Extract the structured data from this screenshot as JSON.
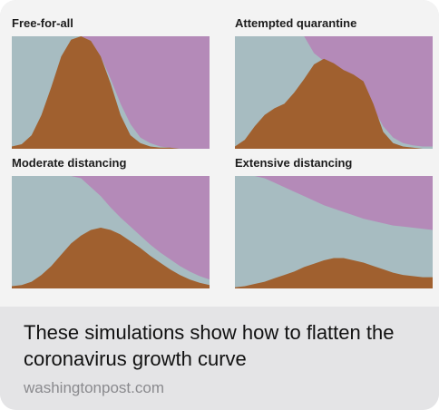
{
  "link_preview": {
    "headline": "These simulations show how to flatten the coronavirus growth curve",
    "domain": "washingtonpost.com",
    "colors": {
      "healthy": "#a7bcc1",
      "sick": "#a0602f",
      "recovered": "#b48ab8",
      "background": "#f3f3f3",
      "caption_bg": "#e4e4e6"
    }
  },
  "chart_data": [
    {
      "type": "area",
      "title": "Free-for-all",
      "stacked": true,
      "series_order": [
        "sick",
        "healthy",
        "recovered"
      ],
      "x": [
        0,
        0.05,
        0.1,
        0.15,
        0.2,
        0.25,
        0.3,
        0.35,
        0.4,
        0.45,
        0.5,
        0.55,
        0.6,
        0.65,
        0.7,
        0.75,
        0.8,
        0.85,
        0.9,
        0.95,
        1
      ],
      "sick_top": [
        0.02,
        0.04,
        0.12,
        0.3,
        0.55,
        0.82,
        0.97,
        1.0,
        0.96,
        0.82,
        0.58,
        0.3,
        0.12,
        0.05,
        0.02,
        0.01,
        0.01,
        0.0,
        0.0,
        0.0,
        0.0
      ],
      "healthy_top": [
        1.0,
        1.0,
        1.0,
        1.0,
        1.0,
        1.0,
        1.0,
        1.0,
        0.96,
        0.82,
        0.62,
        0.4,
        0.22,
        0.1,
        0.05,
        0.02,
        0.01,
        0.0,
        0.0,
        0.0,
        0.0
      ]
    },
    {
      "type": "area",
      "title": "Attempted quarantine",
      "stacked": true,
      "series_order": [
        "sick",
        "healthy",
        "recovered"
      ],
      "x": [
        0,
        0.05,
        0.1,
        0.15,
        0.2,
        0.25,
        0.3,
        0.35,
        0.4,
        0.45,
        0.5,
        0.55,
        0.6,
        0.65,
        0.7,
        0.75,
        0.8,
        0.85,
        0.9,
        0.95,
        1
      ],
      "sick_top": [
        0.02,
        0.08,
        0.2,
        0.3,
        0.36,
        0.4,
        0.5,
        0.62,
        0.75,
        0.8,
        0.76,
        0.7,
        0.66,
        0.6,
        0.4,
        0.15,
        0.05,
        0.02,
        0.01,
        0.0,
        0.0
      ],
      "healthy_top": [
        1.0,
        1.0,
        1.0,
        1.0,
        1.0,
        1.0,
        1.0,
        1.0,
        0.85,
        0.78,
        0.72,
        0.66,
        0.6,
        0.5,
        0.36,
        0.2,
        0.1,
        0.05,
        0.03,
        0.02,
        0.02
      ]
    },
    {
      "type": "area",
      "title": "Moderate distancing",
      "stacked": true,
      "series_order": [
        "sick",
        "healthy",
        "recovered"
      ],
      "x": [
        0,
        0.05,
        0.1,
        0.15,
        0.2,
        0.25,
        0.3,
        0.35,
        0.4,
        0.45,
        0.5,
        0.55,
        0.6,
        0.65,
        0.7,
        0.75,
        0.8,
        0.85,
        0.9,
        0.95,
        1
      ],
      "sick_top": [
        0.02,
        0.03,
        0.06,
        0.12,
        0.2,
        0.3,
        0.4,
        0.47,
        0.52,
        0.54,
        0.52,
        0.48,
        0.42,
        0.36,
        0.29,
        0.23,
        0.17,
        0.12,
        0.08,
        0.05,
        0.03
      ],
      "healthy_top": [
        1.0,
        1.0,
        1.0,
        1.0,
        1.0,
        1.0,
        1.0,
        0.98,
        0.9,
        0.82,
        0.72,
        0.63,
        0.55,
        0.47,
        0.39,
        0.32,
        0.26,
        0.2,
        0.15,
        0.11,
        0.08
      ]
    },
    {
      "type": "area",
      "title": "Extensive distancing",
      "stacked": true,
      "series_order": [
        "sick",
        "healthy",
        "recovered"
      ],
      "x": [
        0,
        0.05,
        0.1,
        0.15,
        0.2,
        0.25,
        0.3,
        0.35,
        0.4,
        0.45,
        0.5,
        0.55,
        0.6,
        0.65,
        0.7,
        0.75,
        0.8,
        0.85,
        0.9,
        0.95,
        1
      ],
      "sick_top": [
        0.01,
        0.02,
        0.04,
        0.06,
        0.09,
        0.12,
        0.15,
        0.19,
        0.22,
        0.25,
        0.27,
        0.27,
        0.25,
        0.23,
        0.2,
        0.17,
        0.14,
        0.12,
        0.11,
        0.1,
        0.1
      ],
      "healthy_top": [
        1.0,
        1.0,
        1.0,
        0.98,
        0.94,
        0.9,
        0.86,
        0.82,
        0.78,
        0.74,
        0.71,
        0.68,
        0.65,
        0.62,
        0.6,
        0.58,
        0.56,
        0.55,
        0.54,
        0.53,
        0.52
      ]
    }
  ]
}
